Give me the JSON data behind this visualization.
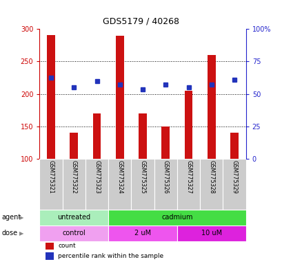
{
  "title": "GDS5179 / 40268",
  "samples": [
    "GSM775321",
    "GSM775322",
    "GSM775323",
    "GSM775324",
    "GSM775325",
    "GSM775326",
    "GSM775327",
    "GSM775328",
    "GSM775329"
  ],
  "counts": [
    291,
    140,
    170,
    290,
    170,
    150,
    205,
    260,
    140
  ],
  "percentiles_left": [
    225,
    210,
    220,
    215,
    207,
    215,
    210,
    215,
    222
  ],
  "ylim_left": [
    100,
    300
  ],
  "ylim_right": [
    0,
    100
  ],
  "yticks_left": [
    100,
    150,
    200,
    250,
    300
  ],
  "yticks_right": [
    0,
    25,
    50,
    75,
    100
  ],
  "bar_color": "#cc1111",
  "dot_color": "#2233bb",
  "bar_bottom": 100,
  "agent_groups": [
    {
      "label": "untreated",
      "start": 0,
      "end": 3,
      "color": "#aaeebb"
    },
    {
      "label": "cadmium",
      "start": 3,
      "end": 9,
      "color": "#44dd44"
    }
  ],
  "dose_groups": [
    {
      "label": "control",
      "start": 0,
      "end": 3,
      "color": "#f0a0f0"
    },
    {
      "label": "2 uM",
      "start": 3,
      "end": 6,
      "color": "#ee55ee"
    },
    {
      "label": "10 uM",
      "start": 6,
      "end": 9,
      "color": "#dd22dd"
    }
  ],
  "legend_count_label": "count",
  "legend_pct_label": "percentile rank within the sample",
  "agent_label": "agent",
  "dose_label": "dose",
  "left_axis_color": "#cc0000",
  "right_axis_color": "#2222cc",
  "bg_xtick": "#cccccc",
  "grid_lines": [
    150,
    200,
    250
  ],
  "title_fontsize": 9,
  "tick_fontsize": 7,
  "label_fontsize": 7,
  "bar_width": 0.35
}
